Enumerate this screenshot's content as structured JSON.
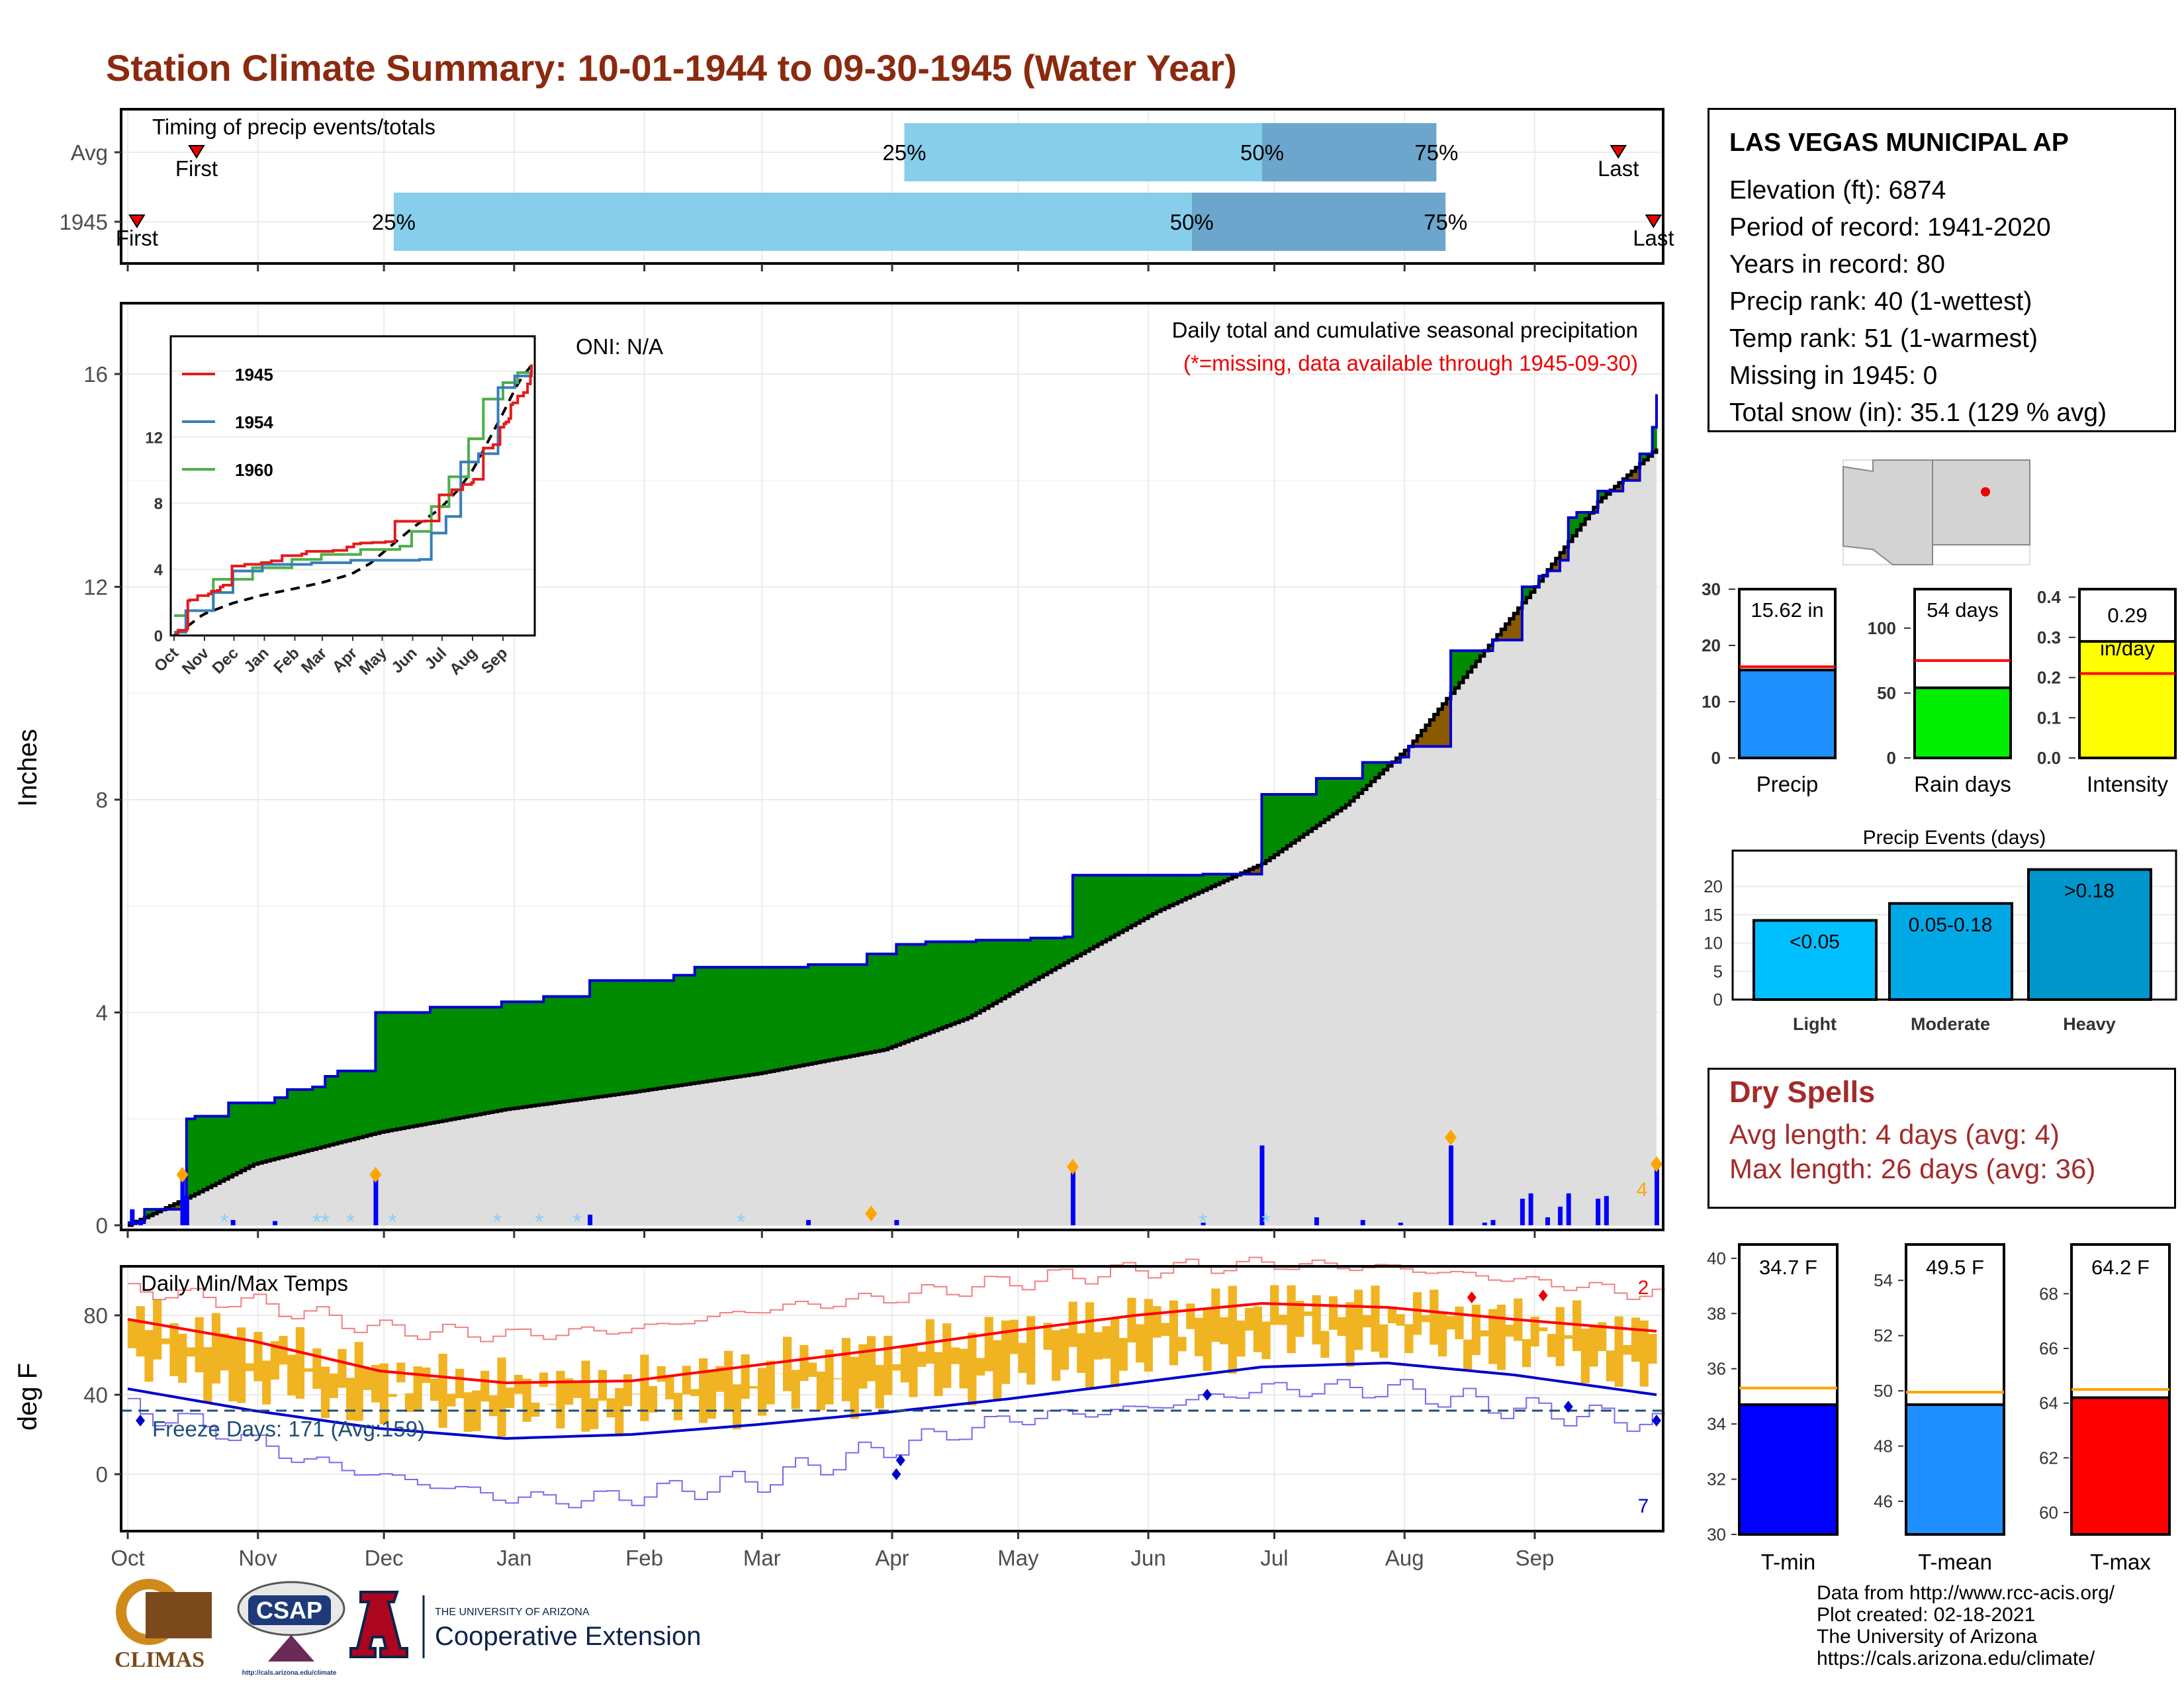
{
  "title": "Station Climate Summary: 10-01-1944 to 09-30-1945 (Water Year)",
  "timing": {
    "label": "Timing of precip events/totals",
    "rows": [
      {
        "name": "Avg",
        "first_label": "First",
        "last_label": "Last",
        "first": 0.045,
        "p25": 0.508,
        "p50": 0.742,
        "p75": 0.856,
        "last": 0.975
      },
      {
        "name": "1945",
        "first_label": "First",
        "last_label": "Last",
        "first": 0.006,
        "p25": 0.174,
        "p50": 0.696,
        "p75": 0.862,
        "last": 0.998
      }
    ],
    "pct_labels": [
      "25%",
      "50%",
      "75%"
    ]
  },
  "precip": {
    "ylabel": "Inches",
    "yticks": [
      "0",
      "4",
      "8",
      "12",
      "16"
    ],
    "annotation_title": "Daily total and cumulative seasonal precipitation",
    "annotation_missing": "(*=missing, data available through 1945-09-30)",
    "oni": "ONI: N/A",
    "extreme_count": "4",
    "cumulative_1945": [
      [
        0,
        0.05
      ],
      [
        4,
        0.3
      ],
      [
        13,
        0.4
      ],
      [
        14,
        2.0
      ],
      [
        16,
        2.05
      ],
      [
        24,
        2.3
      ],
      [
        35,
        2.4
      ],
      [
        38,
        2.55
      ],
      [
        44,
        2.6
      ],
      [
        47,
        2.8
      ],
      [
        50,
        2.9
      ],
      [
        59,
        4.0
      ],
      [
        72,
        4.1
      ],
      [
        89,
        4.2
      ],
      [
        99,
        4.3
      ],
      [
        110,
        4.6
      ],
      [
        130,
        4.7
      ],
      [
        135,
        4.85
      ],
      [
        162,
        4.9
      ],
      [
        176,
        5.1
      ],
      [
        183,
        5.28
      ],
      [
        190,
        5.33
      ],
      [
        202,
        5.36
      ],
      [
        215,
        5.4
      ],
      [
        223,
        5.42
      ],
      [
        225,
        6.58
      ],
      [
        256,
        6.6
      ],
      [
        270,
        8.1
      ],
      [
        283,
        8.4
      ],
      [
        294,
        8.7
      ],
      [
        303,
        8.8
      ],
      [
        305,
        9.0
      ],
      [
        315,
        10.8
      ],
      [
        323,
        10.8
      ],
      [
        325,
        11.0
      ],
      [
        332,
        12.0
      ],
      [
        336,
        12.2
      ],
      [
        338,
        12.3
      ],
      [
        341,
        12.5
      ],
      [
        343,
        13.3
      ],
      [
        345,
        13.4
      ],
      [
        350,
        13.8
      ],
      [
        356,
        14.0
      ],
      [
        360,
        14.5
      ],
      [
        363,
        15.0
      ],
      [
        364,
        15.62
      ]
    ],
    "avg_cumulative": [
      [
        0,
        0.0
      ],
      [
        15,
        0.55
      ],
      [
        30,
        1.15
      ],
      [
        60,
        1.75
      ],
      [
        90,
        2.18
      ],
      [
        120,
        2.5
      ],
      [
        150,
        2.85
      ],
      [
        180,
        3.3
      ],
      [
        200,
        3.9
      ],
      [
        220,
        4.8
      ],
      [
        245,
        5.9
      ],
      [
        270,
        6.8
      ],
      [
        290,
        7.9
      ],
      [
        305,
        9.0
      ],
      [
        320,
        10.5
      ],
      [
        335,
        12.0
      ],
      [
        350,
        13.6
      ],
      [
        364,
        14.6
      ]
    ],
    "daily_1945": [
      [
        1,
        0.3
      ],
      [
        3,
        0.1
      ],
      [
        13,
        0.95
      ],
      [
        14,
        0.55
      ],
      [
        25,
        0.1
      ],
      [
        35,
        0.08
      ],
      [
        59,
        0.95
      ],
      [
        110,
        0.2
      ],
      [
        162,
        0.1
      ],
      [
        183,
        0.1
      ],
      [
        225,
        1.1
      ],
      [
        256,
        0.05
      ],
      [
        270,
        1.5
      ],
      [
        283,
        0.15
      ],
      [
        294,
        0.1
      ],
      [
        303,
        0.05
      ],
      [
        315,
        1.5
      ],
      [
        323,
        0.05
      ],
      [
        325,
        0.1
      ],
      [
        332,
        0.5
      ],
      [
        334,
        0.6
      ],
      [
        338,
        0.15
      ],
      [
        341,
        0.35
      ],
      [
        343,
        0.6
      ],
      [
        350,
        0.5
      ],
      [
        352,
        0.55
      ],
      [
        364,
        1.15
      ]
    ]
  },
  "inset": {
    "legend": [
      "1945",
      "1954",
      "1960"
    ],
    "colors": {
      "1945": "#e41a1c",
      "1954": "#377eb8",
      "1960": "#4daf4a"
    },
    "yticks": [
      "0",
      "4",
      "8",
      "12"
    ],
    "xticks": [
      "Oct",
      "Nov",
      "Dec",
      "Jan",
      "Feb",
      "Mar",
      "Apr",
      "May",
      "Jun",
      "Jul",
      "Aug",
      "Sep"
    ],
    "series": {
      "1954": [
        [
          0,
          0.2
        ],
        [
          12,
          1.5
        ],
        [
          40,
          2.6
        ],
        [
          60,
          3.9
        ],
        [
          90,
          4.3
        ],
        [
          140,
          4.4
        ],
        [
          180,
          4.55
        ],
        [
          250,
          4.6
        ],
        [
          262,
          6.2
        ],
        [
          277,
          7.2
        ],
        [
          292,
          10.5
        ],
        [
          310,
          11.0
        ],
        [
          330,
          15.0
        ],
        [
          347,
          15.7
        ],
        [
          364,
          16.4
        ]
      ],
      "1960": [
        [
          0,
          1.2
        ],
        [
          12,
          1.5
        ],
        [
          40,
          3.4
        ],
        [
          80,
          4.1
        ],
        [
          120,
          4.6
        ],
        [
          150,
          4.9
        ],
        [
          190,
          5.2
        ],
        [
          230,
          5.4
        ],
        [
          242,
          6.3
        ],
        [
          262,
          7.8
        ],
        [
          280,
          9.6
        ],
        [
          300,
          11.9
        ],
        [
          315,
          14.3
        ],
        [
          335,
          15.3
        ],
        [
          350,
          15.9
        ],
        [
          364,
          16.0
        ]
      ]
    }
  },
  "temps": {
    "label": "Daily Min/Max Temps",
    "ylabel": "deg F",
    "yticks": [
      "0",
      "40",
      "80"
    ],
    "freeze_text": "Freeze Days: 171 (Avg:159)",
    "count_high": "2",
    "count_low": "7",
    "months": [
      "Oct",
      "Nov",
      "Dec",
      "Jan",
      "Feb",
      "Mar",
      "Apr",
      "May",
      "Jun",
      "Jul",
      "Aug",
      "Sep"
    ],
    "avg_max": [
      [
        0,
        78
      ],
      [
        30,
        67
      ],
      [
        60,
        52
      ],
      [
        90,
        46
      ],
      [
        120,
        47
      ],
      [
        150,
        55
      ],
      [
        180,
        63
      ],
      [
        210,
        72
      ],
      [
        240,
        80
      ],
      [
        270,
        86
      ],
      [
        300,
        84
      ],
      [
        330,
        78
      ],
      [
        364,
        72
      ]
    ],
    "avg_min": [
      [
        0,
        43
      ],
      [
        30,
        32
      ],
      [
        60,
        23
      ],
      [
        90,
        18
      ],
      [
        120,
        20
      ],
      [
        150,
        25
      ],
      [
        180,
        31
      ],
      [
        210,
        38
      ],
      [
        240,
        46
      ],
      [
        270,
        54
      ],
      [
        300,
        56
      ],
      [
        330,
        50
      ],
      [
        364,
        40
      ]
    ],
    "rec_max": [
      [
        0,
        93
      ],
      [
        30,
        86
      ],
      [
        60,
        73
      ],
      [
        90,
        70
      ],
      [
        120,
        73
      ],
      [
        150,
        83
      ],
      [
        180,
        89
      ],
      [
        210,
        97
      ],
      [
        240,
        103
      ],
      [
        270,
        106
      ],
      [
        300,
        104
      ],
      [
        330,
        98
      ],
      [
        364,
        90
      ]
    ],
    "rec_min": [
      [
        0,
        33
      ],
      [
        20,
        23
      ],
      [
        40,
        8
      ],
      [
        60,
        -1
      ],
      [
        90,
        -12
      ],
      [
        110,
        -13
      ],
      [
        130,
        -8
      ],
      [
        150,
        -3
      ],
      [
        170,
        8
      ],
      [
        190,
        18
      ],
      [
        210,
        28
      ],
      [
        240,
        33
      ],
      [
        270,
        43
      ],
      [
        300,
        43
      ],
      [
        330,
        33
      ],
      [
        364,
        26
      ]
    ]
  },
  "station": {
    "name": "LAS VEGAS MUNICIPAL AP",
    "lines": [
      "Elevation (ft): 6874",
      "Period of record: 1941-2020",
      "Years in record: 80",
      "Precip rank: 40 (1-wettest)",
      "Temp rank: 51 (1-warmest)",
      "Missing in 1945: 0",
      "Total snow (in): 35.1 (129 % avg)"
    ]
  },
  "summary_bars": [
    {
      "xlabel": "Precip",
      "value": 15.62,
      "value_label": "15.62 in",
      "avg": 16.2,
      "ymax": 30,
      "yticks": [
        "0",
        "10",
        "20",
        "30"
      ],
      "color": "#1e90ff"
    },
    {
      "xlabel": "Rain days",
      "value": 54,
      "value_label": "54 days",
      "avg": 75,
      "ymax": 130,
      "yticks": [
        "0",
        "50",
        "100"
      ],
      "color": "#00ee00"
    },
    {
      "xlabel": "Intensity",
      "value": 0.29,
      "value_label": "0.29 in/day",
      "avg": 0.21,
      "ymax": 0.42,
      "yticks": [
        "0.0",
        "0.1",
        "0.2",
        "0.3",
        "0.4"
      ],
      "color": "#ffff00"
    }
  ],
  "precip_events": {
    "title": "Precip Events (days)",
    "categories": [
      "Light",
      "Moderate",
      "Heavy"
    ],
    "labels": [
      "<0.05",
      "0.05-0.18",
      ">0.18"
    ],
    "values": [
      14,
      17,
      23
    ],
    "yticks": [
      "0",
      "5",
      "10",
      "15",
      "20"
    ],
    "colors": [
      "#00bfff",
      "#00a9e6",
      "#0096cc"
    ]
  },
  "dry_spells": {
    "title": "Dry Spells",
    "lines": [
      "Avg length: 4 days (avg: 4)",
      "Max length: 26 days (avg: 36)"
    ]
  },
  "temp_bars": [
    {
      "xlabel": "T-min",
      "value": 34.7,
      "value_label": "34.7 F",
      "avg": 35.3,
      "ymin": 30,
      "ymax": 40.5,
      "yticks": [
        "30",
        "32",
        "34",
        "36",
        "38",
        "40"
      ],
      "color": "#0000ff"
    },
    {
      "xlabel": "T-mean",
      "value": 49.5,
      "value_label": "49.5 F",
      "avg": 49.95,
      "ymin": 44.8,
      "ymax": 55.3,
      "yticks": [
        "46",
        "48",
        "50",
        "52",
        "54"
      ],
      "color": "#1e90ff"
    },
    {
      "xlabel": "T-max",
      "value": 64.2,
      "value_label": "64.2 F",
      "avg": 64.5,
      "ymin": 59.2,
      "ymax": 69.8,
      "yticks": [
        "60",
        "62",
        "64",
        "66",
        "68"
      ],
      "color": "#ff0000"
    }
  ],
  "credits": [
    "Data from http://www.rcc-acis.org/",
    "Plot created: 02-18-2021",
    "The University of Arizona",
    "https://cals.arizona.edu/climate/"
  ],
  "logos": {
    "climas": "CLIMAS",
    "csap": "CSAP",
    "csap_url": "http://cals.arizona.edu/climate",
    "ua_top": "THE UNIVERSITY OF ARIZONA",
    "ua_main": "Cooperative Extension"
  }
}
